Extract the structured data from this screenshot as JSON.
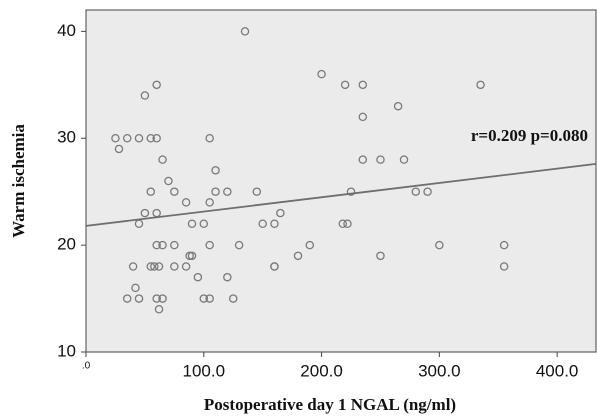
{
  "chart_data": {
    "type": "scatter",
    "x_label": "Postoperative day 1 NGAL (ng/ml)",
    "y_label": "Warm ischemia",
    "annotation": "r=0.209 p=0.080",
    "x": [
      28,
      25,
      35,
      45,
      55,
      60,
      105,
      135,
      60,
      50,
      200,
      220,
      235,
      335,
      235,
      265,
      65,
      110,
      70,
      55,
      75,
      85,
      105,
      110,
      120,
      145,
      50,
      60,
      165,
      225,
      235,
      250,
      270,
      280,
      290,
      45,
      90,
      100,
      150,
      160,
      218,
      222,
      40,
      60,
      65,
      75,
      105,
      130,
      190,
      300,
      355,
      55,
      58,
      62,
      75,
      85,
      160,
      160,
      180,
      250,
      355,
      90,
      88,
      95,
      120,
      35,
      45,
      60,
      65,
      100,
      105,
      125,
      42,
      62
    ],
    "values": [
      29,
      30,
      30,
      30,
      30,
      30,
      30,
      40,
      35,
      34,
      36,
      35,
      35,
      35,
      32,
      33,
      28,
      27,
      26,
      25,
      25,
      24,
      24,
      25,
      25,
      25,
      23,
      23,
      23,
      25,
      28,
      28,
      28,
      25,
      25,
      22,
      22,
      22,
      22,
      22,
      22,
      22,
      18,
      20,
      20,
      20,
      20,
      20,
      20,
      20,
      20,
      18,
      18,
      18,
      18,
      18,
      18,
      18,
      19,
      19,
      18,
      19,
      19,
      17,
      17,
      15,
      15,
      15,
      15,
      15,
      15,
      15,
      16,
      14
    ],
    "color": "#7a7a7a",
    "fit": {
      "x": [
        0,
        433
      ],
      "y": [
        21.8,
        27.6
      ],
      "color": "#6e6e6e"
    },
    "background": "#ebebeb",
    "xlim": [
      0,
      433
    ],
    "ylim": [
      10,
      42
    ],
    "xticks": [
      {
        "value": 0,
        "label": ".0"
      },
      {
        "value": 100,
        "label": "100.0"
      },
      {
        "value": 200,
        "label": "200.0"
      },
      {
        "value": 300,
        "label": "300.0"
      },
      {
        "value": 400,
        "label": "400.0"
      }
    ],
    "yticks": [
      10,
      20,
      30,
      40
    ]
  }
}
